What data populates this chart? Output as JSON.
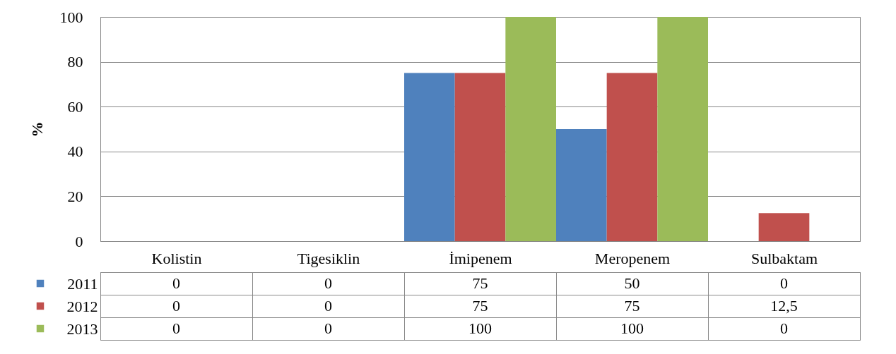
{
  "chart_data": {
    "type": "bar",
    "ylabel": "%",
    "categories": [
      "Kolistin",
      "Tigesiklin",
      "İmipenem",
      "Meropenem",
      "Sulbaktam"
    ],
    "series": [
      {
        "name": "2011",
        "color": "#4f81bd",
        "values": [
          0,
          0,
          75,
          50,
          0
        ],
        "value_labels": [
          "0",
          "0",
          "75",
          "50",
          "0"
        ]
      },
      {
        "name": "2012",
        "color": "#c0504d",
        "values": [
          0,
          0,
          75,
          75,
          12.5
        ],
        "value_labels": [
          "0",
          "0",
          "75",
          "75",
          "12,5"
        ]
      },
      {
        "name": "2013",
        "color": "#9bbb59",
        "values": [
          0,
          0,
          100,
          100,
          0
        ],
        "value_labels": [
          "0",
          "0",
          "100",
          "100",
          "0"
        ]
      }
    ],
    "ylim": [
      0,
      100
    ],
    "yticks": [
      0,
      20,
      40,
      60,
      80,
      100
    ],
    "grid": "y",
    "legend": "bottom"
  }
}
